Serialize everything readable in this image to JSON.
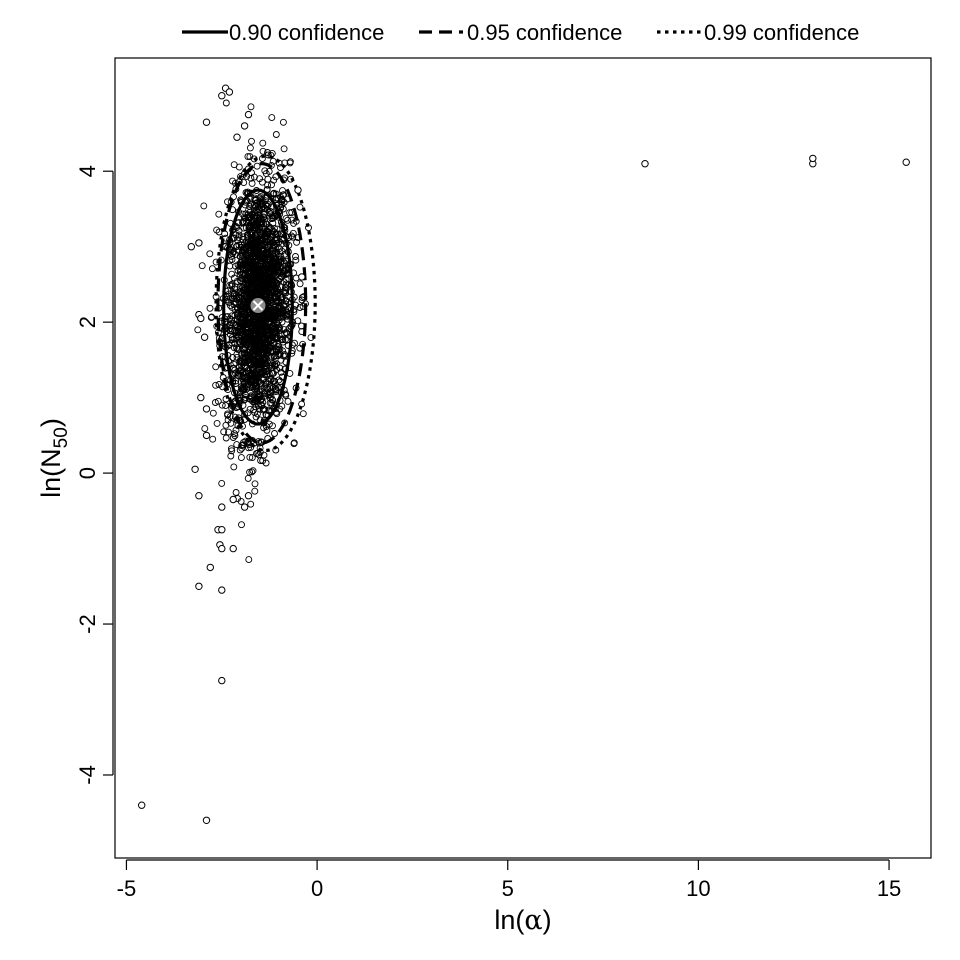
{
  "chart_data": {
    "type": "scatter",
    "xlabel": {
      "prefix": "ln(",
      "symbol": "α",
      "suffix": ")"
    },
    "ylabel": {
      "prefix": "ln(N",
      "subscript": "50",
      "suffix": ")"
    },
    "xlim": [
      -5.3,
      16.1
    ],
    "ylim": [
      -5.1,
      5.5
    ],
    "x_ticks": [
      -5,
      0,
      5,
      10,
      15
    ],
    "x_tick_labels": [
      "-5",
      "0",
      "5",
      "10",
      "15"
    ],
    "y_ticks": [
      -4,
      -2,
      0,
      2,
      4
    ],
    "y_tick_labels": [
      "-4",
      "-2",
      "0",
      "2",
      "4"
    ],
    "grid": false,
    "legend_position": "top, outside plot",
    "legend": [
      {
        "label": "0.90 confidence",
        "style": "solid"
      },
      {
        "label": "0.95 confidence",
        "style": "dashed"
      },
      {
        "label": "0.99 confidence",
        "style": "dotted"
      }
    ],
    "estimate": {
      "x": -1.55,
      "y": 2.22
    },
    "confidence_regions": [
      {
        "level": 0.9,
        "style": "solid",
        "center": [
          -1.55,
          2.2
        ],
        "half_width": 0.9,
        "half_height": 1.55
      },
      {
        "level": 0.95,
        "style": "dashed",
        "center": [
          -1.45,
          2.25
        ],
        "half_width": 1.15,
        "half_height": 1.85
      },
      {
        "level": 0.99,
        "style": "dotted",
        "center": [
          -1.35,
          2.25
        ],
        "half_width": 1.3,
        "half_height": 1.95
      }
    ],
    "outlier_points": [
      [
        -4.6,
        -4.4
      ],
      [
        -2.9,
        -4.6
      ],
      [
        -2.5,
        -2.75
      ],
      [
        -2.8,
        -1.25
      ],
      [
        -3.1,
        -1.5
      ],
      [
        -2.5,
        -1.55
      ],
      [
        -2.6,
        -0.75
      ],
      [
        -2.5,
        -0.75
      ],
      [
        -2.55,
        -0.95
      ],
      [
        -2.5,
        -1.0
      ],
      [
        -2.2,
        -1.0
      ],
      [
        -3.2,
        0.05
      ],
      [
        -3.1,
        -0.3
      ],
      [
        -2.5,
        -0.45
      ],
      [
        -2.2,
        -0.35
      ],
      [
        -1.9,
        -0.45
      ],
      [
        -1.8,
        -0.3
      ],
      [
        -3.3,
        3.0
      ],
      [
        -3.1,
        3.05
      ],
      [
        -2.9,
        4.65
      ],
      [
        -2.4,
        5.1
      ],
      [
        -2.3,
        5.05
      ],
      [
        -2.5,
        5.0
      ],
      [
        -1.8,
        4.75
      ],
      [
        -1.9,
        4.6
      ],
      [
        -2.1,
        4.45
      ],
      [
        -3.1,
        2.1
      ],
      [
        -3.05,
        2.05
      ],
      [
        -2.95,
        1.8
      ],
      [
        -3.05,
        1.0
      ],
      [
        -2.9,
        0.85
      ],
      [
        -2.9,
        0.5
      ],
      [
        -0.5,
        3.75
      ],
      [
        -0.4,
        2.6
      ],
      [
        8.6,
        4.1
      ],
      [
        13.0,
        4.1
      ],
      [
        13.0,
        4.17
      ],
      [
        15.45,
        4.12
      ]
    ]
  }
}
